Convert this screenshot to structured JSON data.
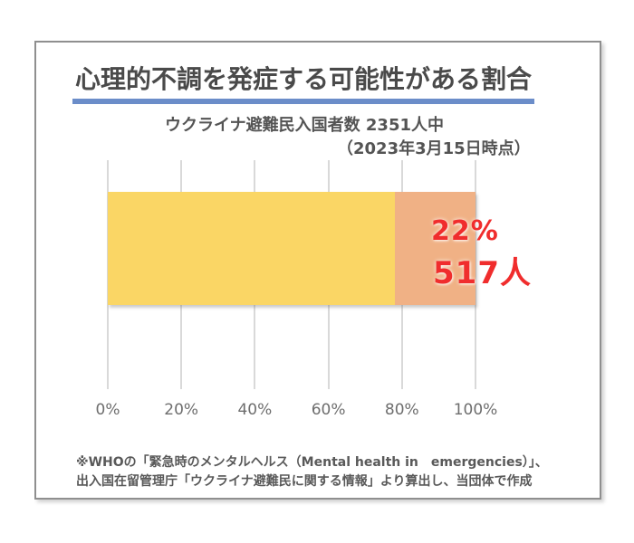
{
  "chart_data": {
    "type": "bar",
    "orientation": "horizontal",
    "stacked": true,
    "title": "心理的不調を発症する可能性がある割合",
    "subtitle_line1": "ウクライナ避難民入国者数 2351人中",
    "subtitle_line2": "（2023年3月15日時点）",
    "series": [
      {
        "name": "remainder",
        "values": [
          78
        ],
        "color": "#fad665"
      },
      {
        "name": "at-risk",
        "values": [
          22
        ],
        "color": "#f0b185"
      }
    ],
    "annotations": {
      "percent_label": "22%",
      "count_label": "517人"
    },
    "total_count": 2351,
    "at_risk_count": 517,
    "x_ticks": [
      "0%",
      "20%",
      "40%",
      "60%",
      "80%",
      "100%"
    ],
    "xlim": [
      0,
      100
    ],
    "grid": true,
    "legend": "none"
  },
  "footnote": {
    "line1": "※WHOの「緊急時のメンタルヘルス（Mental health in　emergencies）」、",
    "line2": "出入国在留管理庁「ウクライナ避難民に関する情報」より算出し、当団体で作成"
  },
  "colors": {
    "bar_remainder": "#fad665",
    "bar_at_risk": "#f0b185",
    "accent_red": "#f02d2d",
    "underline_blue": "#6b8dc9",
    "title_text": "#4a4a4a",
    "grid": "#d9d9d9",
    "card_border": "#8f8f8f"
  }
}
